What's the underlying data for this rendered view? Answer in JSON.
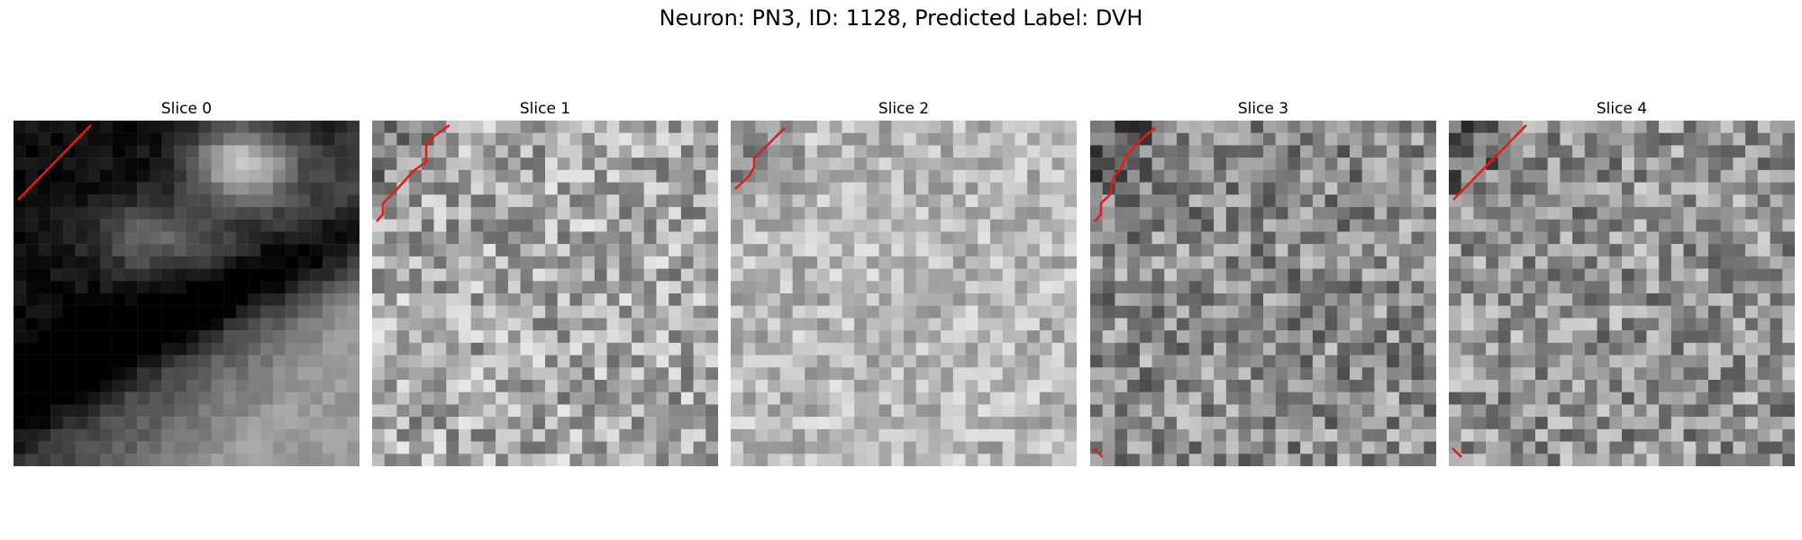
{
  "figure": {
    "title": "Neuron: PN3, ID: 1128, Predicted Label: DVH"
  },
  "panels": [
    {
      "title": "Slice 0",
      "style": "dark_with_bright_blob",
      "tone": 0.18
    },
    {
      "title": "Slice 1",
      "style": "noise",
      "tone": 0.66
    },
    {
      "title": "Slice 2",
      "style": "noise_light",
      "tone": 0.72
    },
    {
      "title": "Slice 3",
      "style": "noise",
      "tone": 0.55
    },
    {
      "title": "Slice 4",
      "style": "noise",
      "tone": 0.58
    }
  ],
  "colors": {
    "contour": "#e41a1c",
    "background": "#ffffff"
  },
  "image": {
    "grid": 28,
    "colormap": "gray"
  }
}
